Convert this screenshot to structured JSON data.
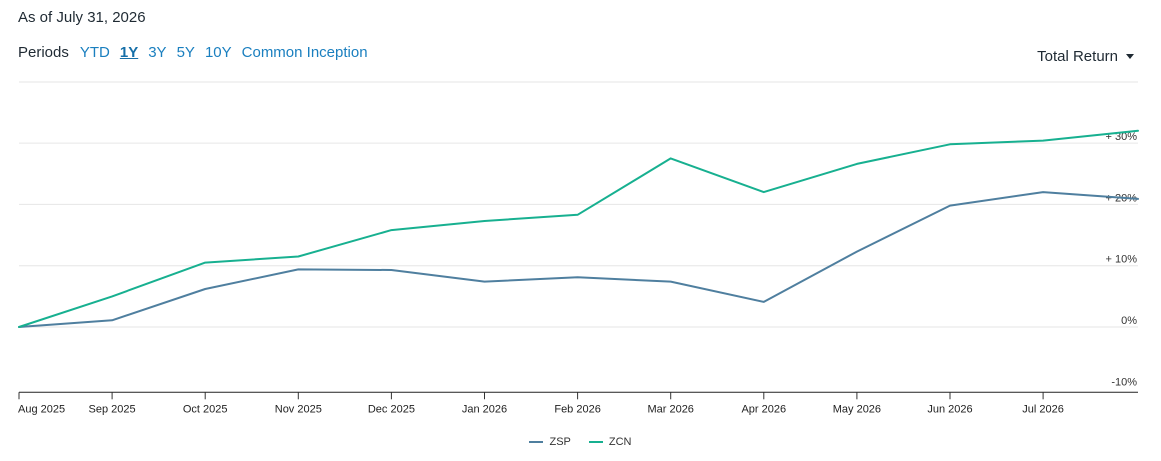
{
  "header": {
    "as_of": "As of July 31, 2026",
    "periods_label": "Periods",
    "periods": [
      "YTD",
      "1Y",
      "3Y",
      "5Y",
      "10Y",
      "Common Inception"
    ],
    "active_period": "1Y",
    "metric": "Total Return"
  },
  "chart_data": {
    "type": "line",
    "x": [
      "Aug 2025",
      "Sep 2025",
      "Oct 2025",
      "Nov 2025",
      "Dec 2025",
      "Jan 2026",
      "Feb 2026",
      "Mar 2026",
      "Apr 2026",
      "May 2026",
      "Jun 2026",
      "Jul 2026",
      "Jul 31 2026"
    ],
    "x_tick_labels": [
      "Aug 2025",
      "Sep 2025",
      "Oct 2025",
      "Nov 2025",
      "Dec 2025",
      "Jan 2026",
      "Feb 2026",
      "Mar 2026",
      "Apr 2026",
      "May 2026",
      "Jun 2026",
      "Jul 2026"
    ],
    "y_ticks": [
      -10,
      0,
      10,
      20,
      30
    ],
    "y_tick_labels": [
      "-10%",
      "0%",
      "+ 10%",
      "+ 20%",
      "+ 30%"
    ],
    "ylim": [
      -10,
      40
    ],
    "grid": true,
    "legend_position": "bottom-center",
    "series": [
      {
        "name": "ZSP",
        "color": "#4f7f9f",
        "values": [
          0,
          1.1,
          6.2,
          9.4,
          9.3,
          7.4,
          8.1,
          7.4,
          4.1,
          12.3,
          19.8,
          22.0,
          20.9
        ]
      },
      {
        "name": "ZCN",
        "color": "#17b090",
        "values": [
          0,
          5.0,
          10.5,
          11.5,
          15.8,
          17.3,
          18.3,
          27.5,
          22.0,
          26.6,
          29.8,
          30.4,
          32.0
        ]
      }
    ]
  }
}
